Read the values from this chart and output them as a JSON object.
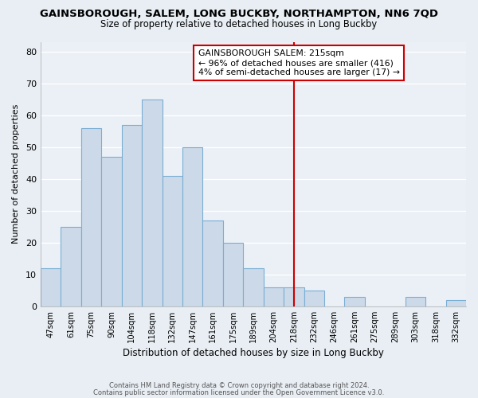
{
  "title": "GAINSBOROUGH, SALEM, LONG BUCKBY, NORTHAMPTON, NN6 7QD",
  "subtitle": "Size of property relative to detached houses in Long Buckby",
  "xlabel": "Distribution of detached houses by size in Long Buckby",
  "ylabel": "Number of detached properties",
  "bin_labels": [
    "47sqm",
    "61sqm",
    "75sqm",
    "90sqm",
    "104sqm",
    "118sqm",
    "132sqm",
    "147sqm",
    "161sqm",
    "175sqm",
    "189sqm",
    "204sqm",
    "218sqm",
    "232sqm",
    "246sqm",
    "261sqm",
    "275sqm",
    "289sqm",
    "303sqm",
    "318sqm",
    "332sqm"
  ],
  "bar_heights": [
    12,
    25,
    56,
    47,
    57,
    65,
    41,
    50,
    27,
    20,
    12,
    6,
    6,
    5,
    0,
    3,
    0,
    0,
    3,
    0,
    2
  ],
  "bar_color": "#ccd9e8",
  "bar_edge_color": "#7aaed4",
  "vline_index": 12,
  "vline_color": "#cc0000",
  "ylim": [
    0,
    83
  ],
  "yticks": [
    0,
    10,
    20,
    30,
    40,
    50,
    60,
    70,
    80
  ],
  "annotation_title": "GAINSBOROUGH SALEM: 215sqm",
  "annotation_line1": "← 96% of detached houses are smaller (416)",
  "annotation_line2": "4% of semi-detached houses are larger (17) →",
  "annotation_box_color": "#ffffff",
  "annotation_border_color": "#cc0000",
  "footer_line1": "Contains HM Land Registry data © Crown copyright and database right 2024.",
  "footer_line2": "Contains public sector information licensed under the Open Government Licence v3.0.",
  "background_color": "#e8eef4",
  "grid_color": "#d0dae4",
  "plot_bg_color": "#eaf0f6"
}
